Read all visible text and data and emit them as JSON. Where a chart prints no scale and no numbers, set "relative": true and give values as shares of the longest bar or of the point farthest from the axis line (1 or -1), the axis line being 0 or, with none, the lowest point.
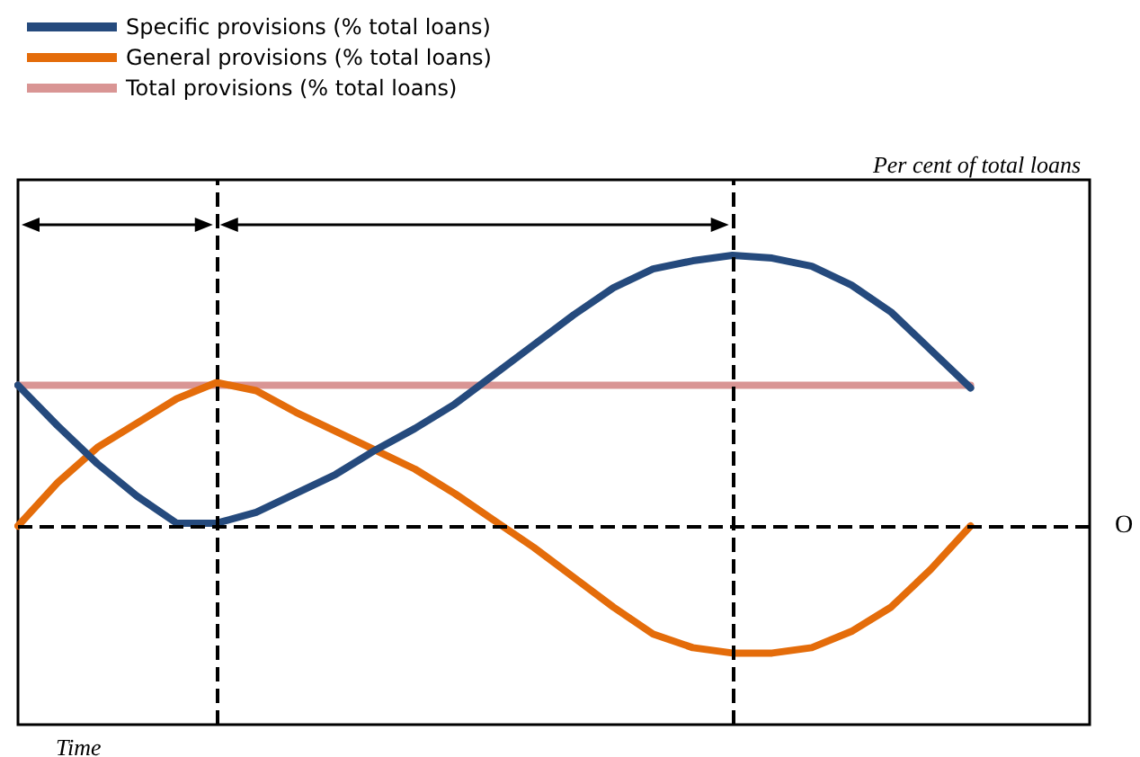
{
  "chart_data": {
    "type": "line",
    "relative": true,
    "ylabel": "Per cent of total loans",
    "xlabel": "Time",
    "legend": "top",
    "marker": "none",
    "line_style": "solid",
    "categories": [
      null,
      null,
      null,
      null,
      null,
      null,
      null,
      null,
      null,
      null,
      null,
      null,
      null,
      null,
      null,
      null,
      null,
      null,
      null,
      null,
      null,
      null,
      null,
      null,
      null,
      null,
      null,
      null
    ],
    "series": [
      {
        "name": "Specific provisions (% total loans)",
        "color": "#254a7d",
        "values": [
          0.52,
          0.37,
          0.23,
          0.11,
          0.01,
          0.01,
          0.05,
          0.12,
          0.19,
          0.28,
          0.36,
          0.45,
          0.56,
          0.67,
          0.78,
          0.88,
          0.95,
          0.98,
          1,
          0.99,
          0.96,
          0.89,
          0.79,
          0.65,
          0.51,
          null,
          null,
          null
        ]
      },
      {
        "name": "General provisions (% total loans)",
        "color": "#e46c0a",
        "values": [
          0,
          0.16,
          0.29,
          0.38,
          0.47,
          0.53,
          0.5,
          0.42,
          0.35,
          0.28,
          0.21,
          0.12,
          0.02,
          -0.08,
          -0.19,
          -0.3,
          -0.4,
          -0.45,
          -0.47,
          -0.47,
          -0.45,
          -0.39,
          -0.3,
          -0.16,
          0,
          null,
          null,
          null
        ]
      },
      {
        "name": "Total provisions (% total loans)",
        "color": "#d99594",
        "values": [
          0.52,
          0.52,
          0.52,
          0.52,
          0.52,
          0.52,
          0.52,
          0.52,
          0.52,
          0.52,
          0.52,
          0.52,
          0.52,
          0.52,
          0.52,
          0.52,
          0.52,
          0.52,
          0.52,
          0.52,
          0.52,
          0.52,
          0.52,
          0.52,
          0.52,
          null,
          null,
          null
        ]
      }
    ],
    "ref_lines": [
      {
        "axis": "y",
        "value": 0,
        "label": "O",
        "line_style": "dashed"
      }
    ]
  }
}
